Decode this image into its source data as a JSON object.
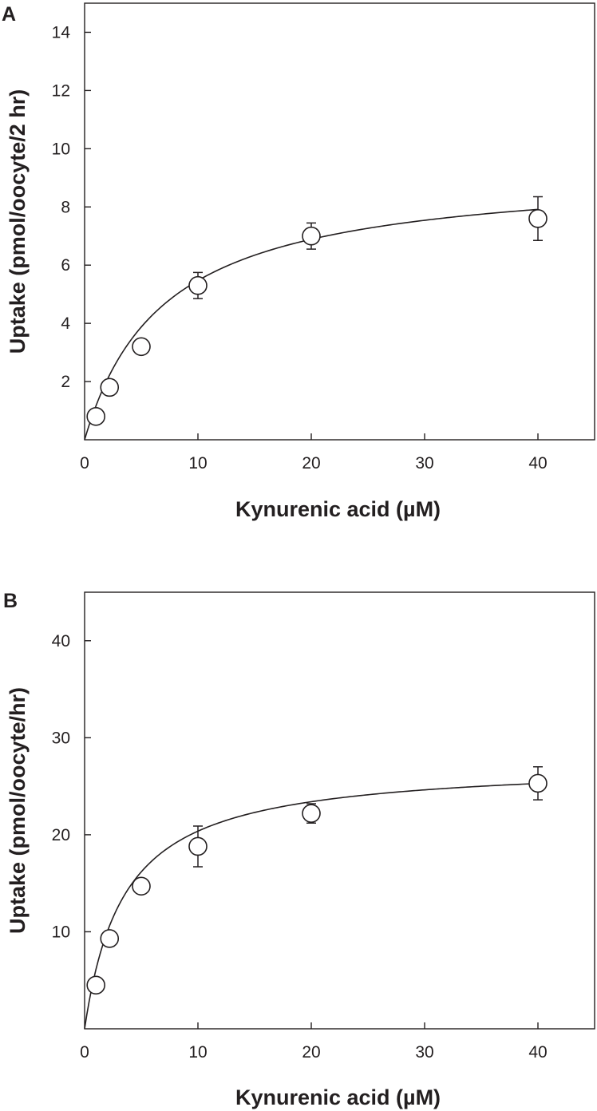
{
  "chart_data": [
    {
      "type": "scatter",
      "panel_label": "A",
      "title": "",
      "xlabel": "Kynurenic acid (µM)",
      "ylabel": "Uptake (pmol/oocyte/2 hr)",
      "xlim": [
        0,
        45
      ],
      "ylim": [
        0,
        15
      ],
      "x_ticks": [
        0,
        10,
        20,
        30,
        40
      ],
      "y_ticks": [
        2,
        4,
        6,
        8,
        10,
        12,
        14
      ],
      "x_tick_labels": [
        "0",
        "10",
        "20",
        "30",
        "40"
      ],
      "y_tick_labels": [
        "2",
        "4",
        "6",
        "8",
        "10",
        "12",
        "14"
      ],
      "points": [
        {
          "x": 1.0,
          "y": 0.8,
          "err": 0
        },
        {
          "x": 2.2,
          "y": 1.8,
          "err": 0
        },
        {
          "x": 5.0,
          "y": 3.2,
          "err": 0
        },
        {
          "x": 10.0,
          "y": 5.3,
          "err": 0.45
        },
        {
          "x": 20.0,
          "y": 7.0,
          "err": 0.45
        },
        {
          "x": 40.0,
          "y": 7.6,
          "err": 0.75
        }
      ],
      "fit": {
        "model": "michaelis-menten",
        "vmax": 9.3,
        "km": 7.0
      },
      "grid": false
    },
    {
      "type": "scatter",
      "panel_label": "B",
      "title": "",
      "xlabel": "Kynurenic acid (µM)",
      "ylabel": "Uptake (pmol/oocyte/hr)",
      "xlim": [
        0,
        45
      ],
      "ylim": [
        0,
        45
      ],
      "x_ticks": [
        0,
        10,
        20,
        30,
        40
      ],
      "y_ticks": [
        10,
        20,
        30,
        40
      ],
      "x_tick_labels": [
        "0",
        "10",
        "20",
        "30",
        "40"
      ],
      "y_tick_labels": [
        "10",
        "20",
        "30",
        "40"
      ],
      "points": [
        {
          "x": 1.0,
          "y": 4.5,
          "err": 0
        },
        {
          "x": 2.2,
          "y": 9.3,
          "err": 0.8
        },
        {
          "x": 5.0,
          "y": 14.7,
          "err": 0.7
        },
        {
          "x": 10.0,
          "y": 18.8,
          "err": 2.1
        },
        {
          "x": 20.0,
          "y": 22.2,
          "err": 1.0
        },
        {
          "x": 40.0,
          "y": 25.3,
          "err": 1.7
        }
      ],
      "fit": {
        "model": "michaelis-menten",
        "vmax": 27.5,
        "km": 3.5
      },
      "grid": false
    }
  ]
}
